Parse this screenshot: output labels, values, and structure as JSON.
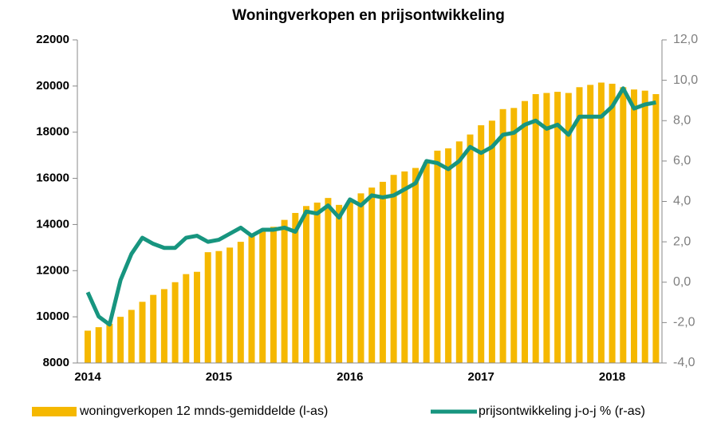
{
  "chart_data": {
    "type": "bar-line",
    "title": "Woningverkopen en prijsontwikkeling",
    "categories": [
      "2014",
      null,
      null,
      null,
      null,
      null,
      null,
      null,
      null,
      null,
      null,
      null,
      "2015",
      null,
      null,
      null,
      null,
      null,
      null,
      null,
      null,
      null,
      null,
      null,
      "2016",
      null,
      null,
      null,
      null,
      null,
      null,
      null,
      null,
      null,
      null,
      null,
      "2017",
      null,
      null,
      null,
      null,
      null,
      null,
      null,
      null,
      null,
      null,
      null,
      "2018",
      null,
      null,
      null,
      null
    ],
    "series": [
      {
        "name": "woningverkopen 12 mnds-gemiddelde (l-as)",
        "color": "#f5b800",
        "kind": "bar",
        "axis": "y",
        "values": [
          9400,
          9550,
          9700,
          10000,
          10300,
          10650,
          10950,
          11200,
          11500,
          11850,
          11950,
          12800,
          12850,
          13000,
          13250,
          13500,
          13700,
          13900,
          14200,
          14500,
          14800,
          14950,
          15150,
          14850,
          15050,
          15350,
          15600,
          15850,
          16150,
          16300,
          16450,
          16700,
          17200,
          17300,
          17600,
          17900,
          18300,
          18500,
          19000,
          19050,
          19350,
          19650,
          19700,
          19750,
          19700,
          19950,
          20050,
          20150,
          20100,
          19950,
          19850,
          19800,
          19650
        ]
      },
      {
        "name": "prijsontwikkeling j-o-j % (r-as)",
        "color": "#17957f",
        "kind": "line",
        "axis": "y2",
        "values": [
          -0.5,
          -1.7,
          -2.1,
          0.1,
          1.4,
          2.2,
          1.9,
          1.7,
          1.7,
          2.2,
          2.3,
          2.0,
          2.1,
          2.4,
          2.7,
          2.3,
          2.6,
          2.6,
          2.7,
          2.5,
          3.5,
          3.4,
          3.8,
          3.2,
          4.1,
          3.8,
          4.3,
          4.2,
          4.3,
          4.6,
          4.9,
          6.0,
          5.9,
          5.6,
          6.0,
          6.7,
          6.4,
          6.7,
          7.3,
          7.4,
          7.8,
          8.0,
          7.6,
          7.8,
          7.3,
          8.2,
          8.2,
          8.2,
          8.7,
          9.6,
          8.6,
          8.8,
          8.9
        ]
      }
    ],
    "ylim": [
      8000,
      22000
    ],
    "yticks": [
      8000,
      10000,
      12000,
      14000,
      16000,
      18000,
      20000,
      22000
    ],
    "y2lim": [
      -4,
      12
    ],
    "y2ticks": [
      {
        "value": -4,
        "label": "-4,0"
      },
      {
        "value": -2,
        "label": "-2,0"
      },
      {
        "value": 0,
        "label": "0,0"
      },
      {
        "value": 2,
        "label": "2,0"
      },
      {
        "value": 4,
        "label": "4,0"
      },
      {
        "value": 6,
        "label": "6,0"
      },
      {
        "value": 8,
        "label": "8,0"
      },
      {
        "value": 10,
        "label": "10,0"
      },
      {
        "value": 12,
        "label": "12,0"
      }
    ],
    "legend": "bottom"
  }
}
